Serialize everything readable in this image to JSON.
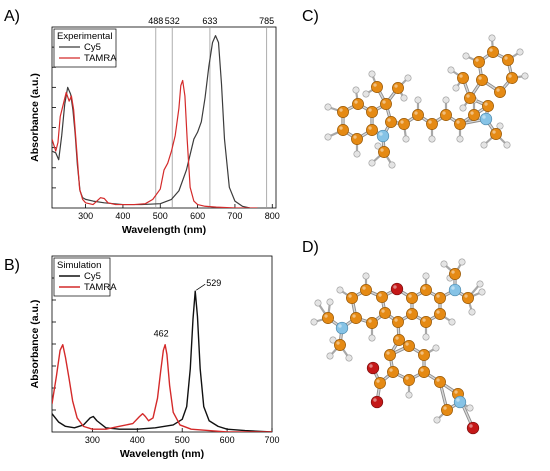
{
  "panels": {
    "a": "A)",
    "b": "B)",
    "c": "C)",
    "d": "D)"
  },
  "chart_data": [
    {
      "type": "line",
      "panel": "A)",
      "xlabel": "Wavelength (nm)",
      "ylabel": "Absorbance (a.u.)",
      "xlim": [
        210,
        810
      ],
      "ylim": [
        0,
        1.05
      ],
      "xticks": [
        300,
        400,
        500,
        600,
        700,
        800
      ],
      "y_ticks_labeled": false,
      "legend": {
        "title": "Experimental",
        "position": "top-left"
      },
      "laser_lines": [
        {
          "x": 488,
          "label": "488"
        },
        {
          "x": 532,
          "label": "532"
        },
        {
          "x": 633,
          "label": "633"
        },
        {
          "x": 785,
          "label": "785"
        }
      ],
      "series": [
        {
          "name": "Cy5",
          "color": "#3c3c3c",
          "x": [
            210,
            220,
            228,
            236,
            244,
            252,
            260,
            266,
            272,
            278,
            285,
            292,
            300,
            320,
            350,
            400,
            450,
            500,
            530,
            550,
            570,
            590,
            600,
            610,
            620,
            630,
            640,
            648,
            656,
            664,
            672,
            685,
            700,
            720,
            740
          ],
          "y": [
            0.33,
            0.32,
            0.28,
            0.42,
            0.6,
            0.7,
            0.66,
            0.57,
            0.43,
            0.25,
            0.1,
            0.06,
            0.05,
            0.04,
            0.03,
            0.02,
            0.02,
            0.025,
            0.05,
            0.1,
            0.22,
            0.4,
            0.44,
            0.5,
            0.64,
            0.82,
            0.96,
            1.0,
            0.96,
            0.72,
            0.4,
            0.12,
            0.04,
            0.01,
            0.0
          ]
        },
        {
          "name": "TAMRA",
          "color": "#d42a2a",
          "x": [
            210,
            220,
            226,
            232,
            240,
            248,
            256,
            262,
            268,
            276,
            284,
            292,
            300,
            320,
            340,
            350,
            360,
            380,
            400,
            430,
            460,
            480,
            500,
            510,
            520,
            530,
            540,
            550,
            555,
            560,
            566,
            572,
            580,
            590,
            600,
            620,
            650,
            700,
            760
          ],
          "y": [
            0.4,
            0.33,
            0.38,
            0.53,
            0.6,
            0.67,
            0.62,
            0.65,
            0.57,
            0.34,
            0.11,
            0.05,
            0.03,
            0.02,
            0.06,
            0.055,
            0.03,
            0.02,
            0.02,
            0.02,
            0.025,
            0.05,
            0.11,
            0.22,
            0.26,
            0.33,
            0.42,
            0.58,
            0.71,
            0.74,
            0.65,
            0.4,
            0.12,
            0.04,
            0.02,
            0.01,
            0.005,
            0.0,
            0.0
          ]
        }
      ]
    },
    {
      "type": "line",
      "panel": "B)",
      "xlabel": "Wavelength (nm)",
      "ylabel": "Absorbance (a.u.)",
      "xlim": [
        210,
        700
      ],
      "ylim": [
        0,
        1.25
      ],
      "xticks": [
        300,
        400,
        500,
        600,
        700
      ],
      "y_ticks_labeled": false,
      "legend": {
        "title": "Simulation",
        "position": "top-left"
      },
      "annotations": [
        {
          "x": 462,
          "label": "462"
        },
        {
          "x": 529,
          "label": "529"
        }
      ],
      "series": [
        {
          "name": "Cy5",
          "color": "#111111",
          "x": [
            210,
            225,
            240,
            260,
            280,
            295,
            302,
            310,
            330,
            360,
            400,
            440,
            480,
            500,
            510,
            518,
            524,
            529,
            534,
            540,
            548,
            560,
            580,
            600,
            640,
            700
          ],
          "y": [
            0.13,
            0.07,
            0.04,
            0.03,
            0.05,
            0.1,
            0.11,
            0.08,
            0.03,
            0.02,
            0.02,
            0.03,
            0.05,
            0.09,
            0.18,
            0.45,
            0.8,
            1.0,
            0.82,
            0.45,
            0.18,
            0.08,
            0.04,
            0.02,
            0.01,
            0.0
          ]
        },
        {
          "name": "TAMRA",
          "color": "#d42a2a",
          "x": [
            210,
            220,
            228,
            234,
            240,
            248,
            256,
            266,
            280,
            300,
            330,
            360,
            390,
            405,
            412,
            418,
            425,
            435,
            445,
            452,
            458,
            462,
            466,
            472,
            480,
            495,
            520,
            560,
            600,
            700
          ],
          "y": [
            0.2,
            0.4,
            0.58,
            0.62,
            0.53,
            0.38,
            0.22,
            0.1,
            0.04,
            0.02,
            0.02,
            0.04,
            0.06,
            0.11,
            0.13,
            0.11,
            0.08,
            0.1,
            0.24,
            0.43,
            0.58,
            0.62,
            0.55,
            0.33,
            0.14,
            0.05,
            0.02,
            0.01,
            0.0,
            0.0
          ]
        }
      ]
    }
  ]
}
